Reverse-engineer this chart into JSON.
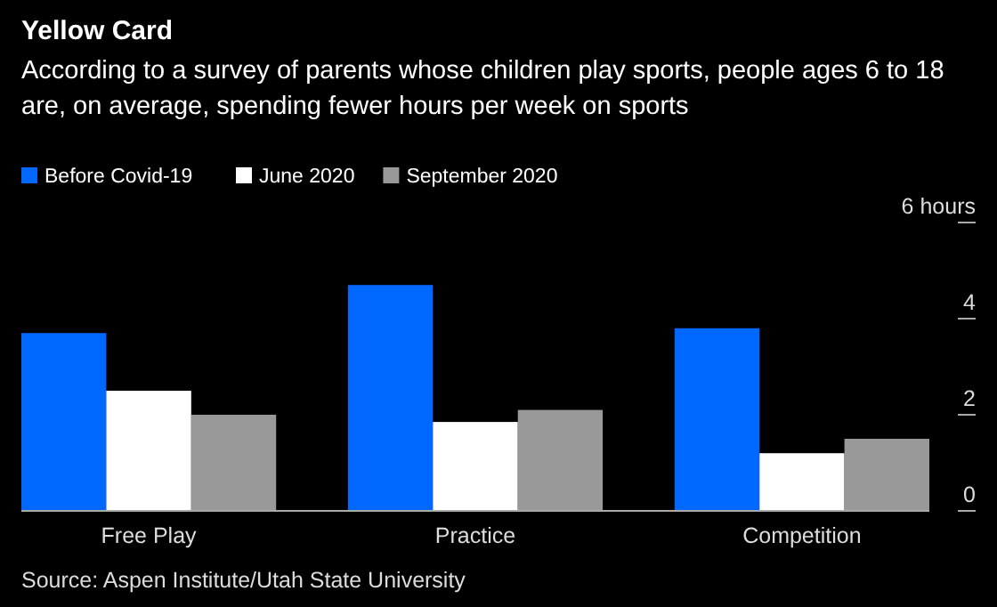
{
  "chart_data": {
    "type": "bar",
    "title": "Yellow Card",
    "subtitle": "According to a survey of parents whose children play sports, people ages 6 to 18 are, on average, spending fewer hours per week on sports",
    "categories": [
      "Free Play",
      "Practice",
      "Competition"
    ],
    "series": [
      {
        "name": "Before Covid-19",
        "color": "#0068ff",
        "values": [
          3.7,
          4.7,
          3.8
        ]
      },
      {
        "name": "June 2020",
        "color": "#ffffff",
        "values": [
          2.5,
          1.85,
          1.2
        ]
      },
      {
        "name": "September 2020",
        "color": "#999999",
        "values": [
          2.0,
          2.1,
          1.5
        ]
      }
    ],
    "ylim": [
      0,
      6
    ],
    "yticks": [
      0,
      2,
      4,
      {
        "value": 6,
        "label": "6 hours"
      }
    ],
    "grid": false,
    "legend": "top left",
    "annotations": [
      "Source: Aspen Institute/Utah State University"
    ]
  }
}
